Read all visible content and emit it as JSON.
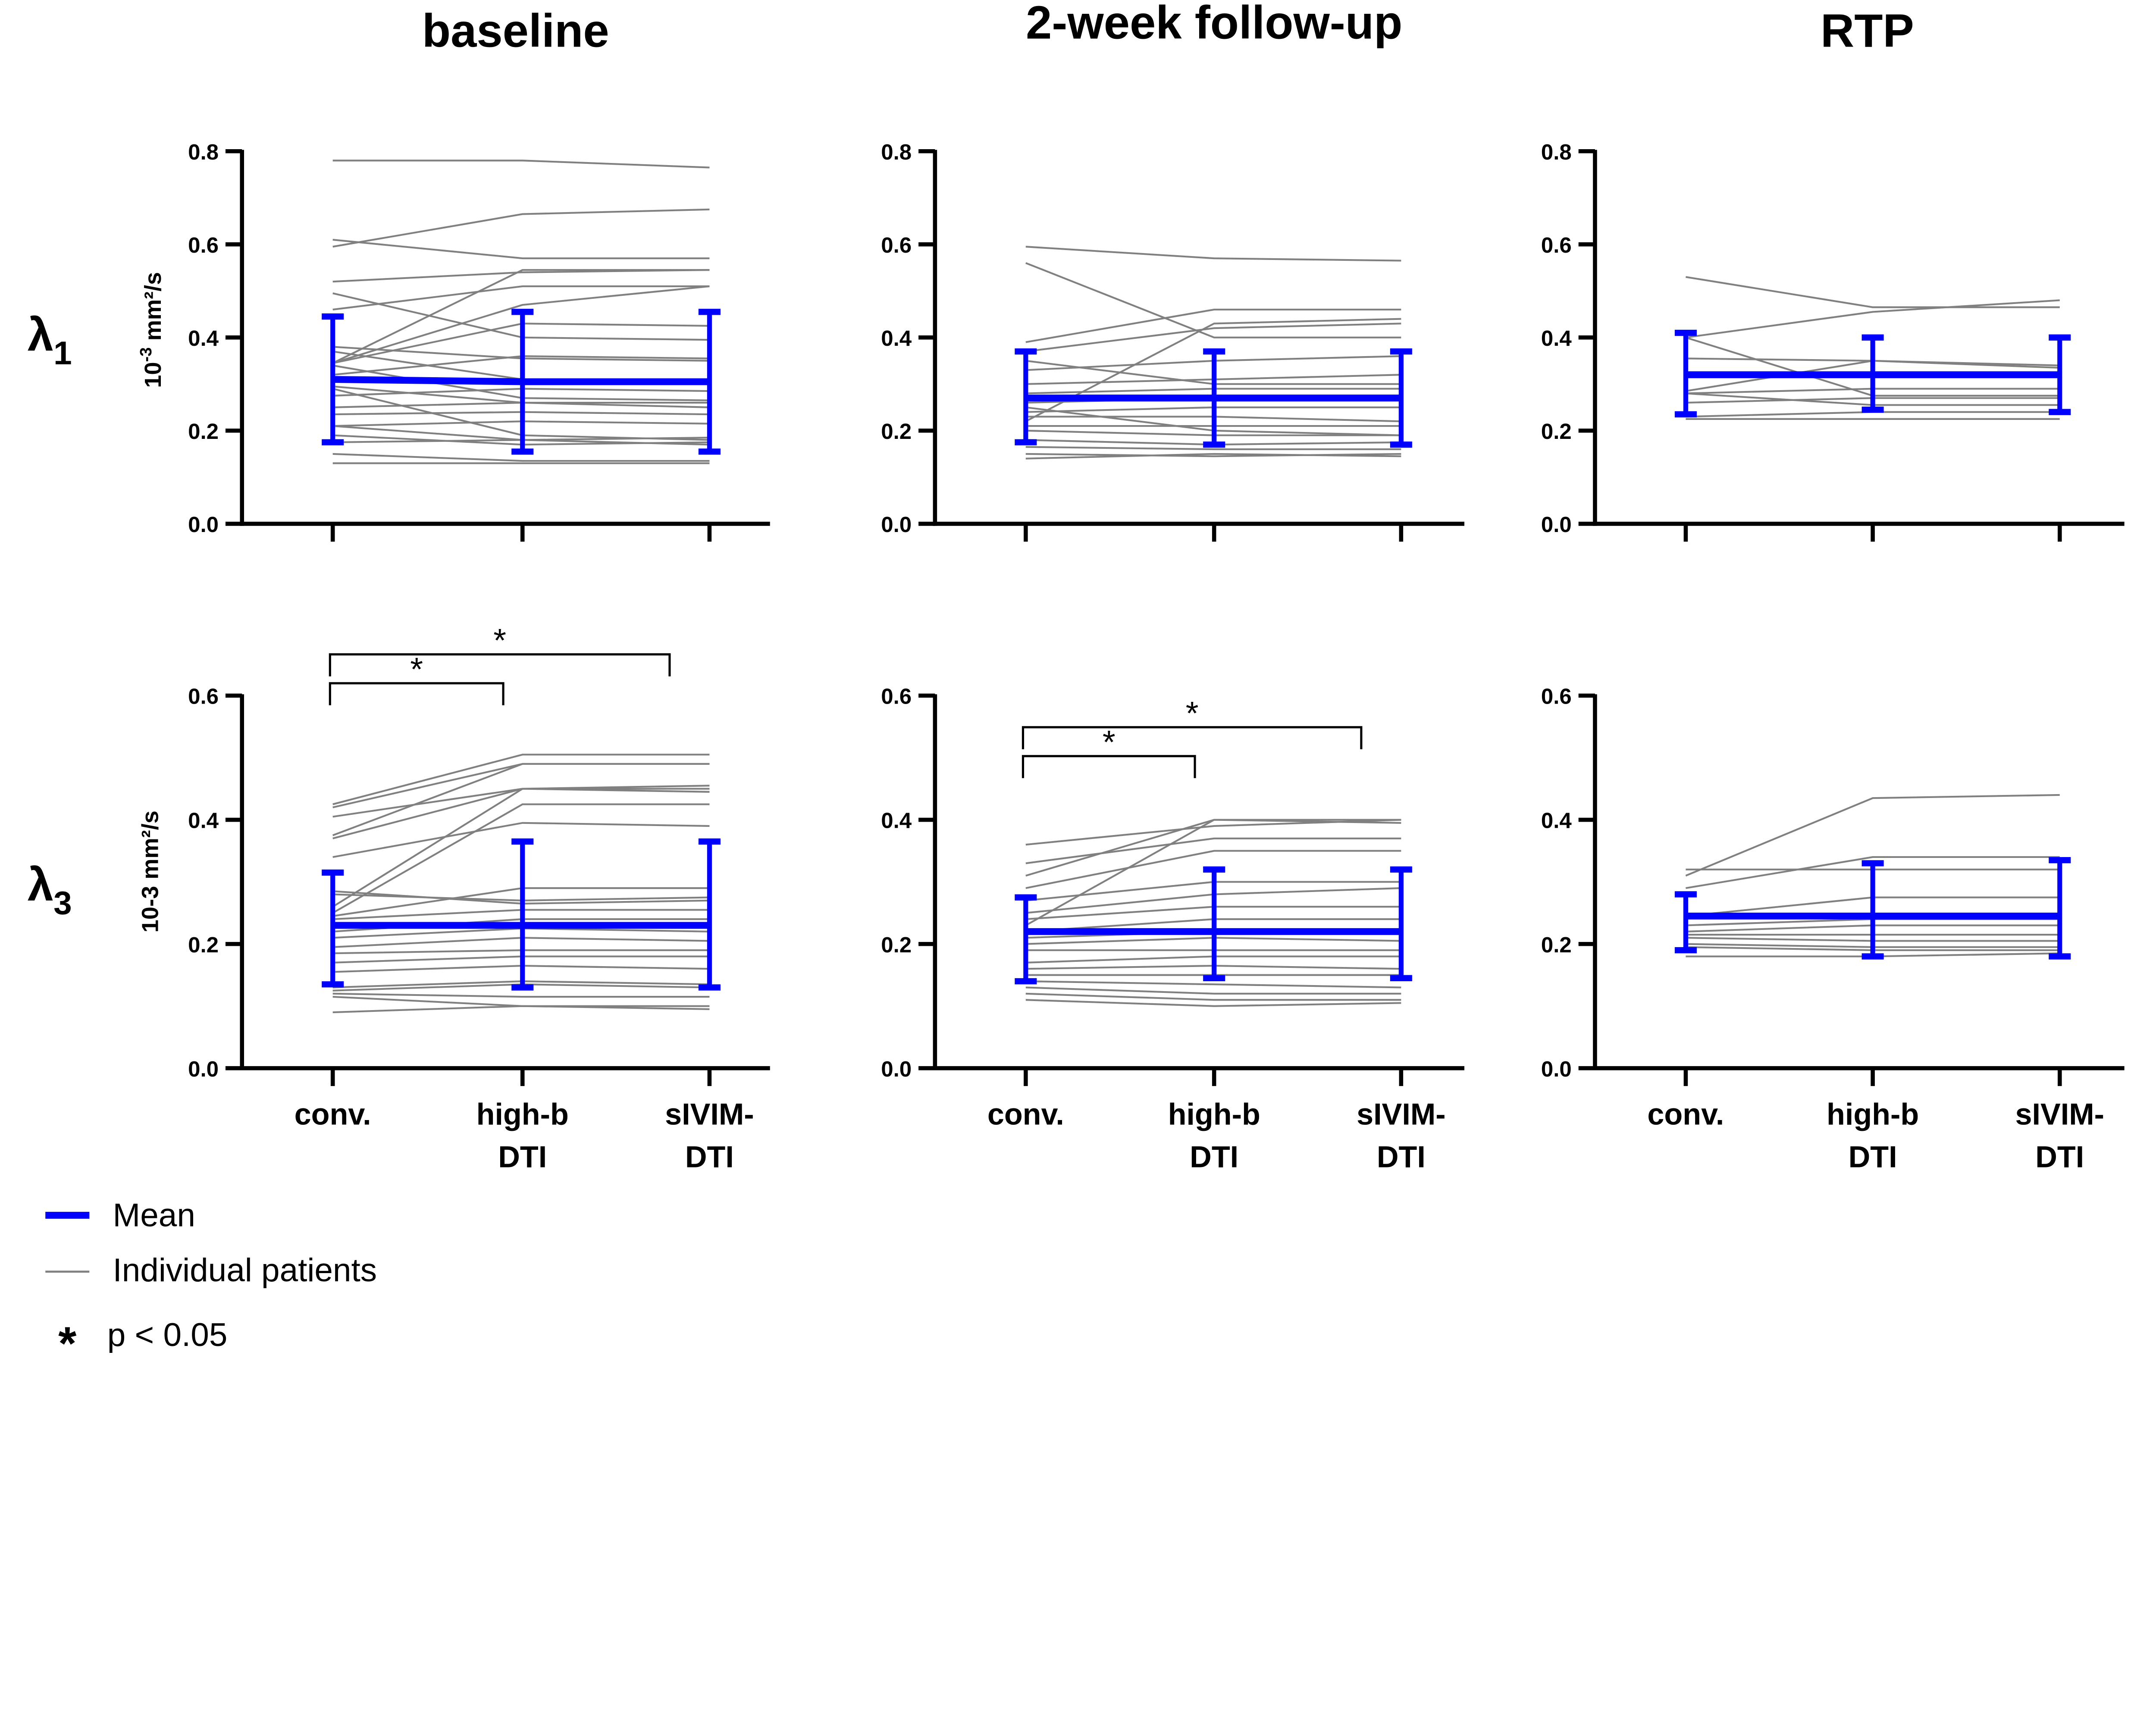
{
  "chart_data": {
    "type": "line",
    "columns": [
      "baseline",
      "2-week follow-up",
      "RTP"
    ],
    "rows": [
      {
        "label": "λ",
        "subscript": "1",
        "ylabel_base": "10",
        "ylabel_exp": "-3",
        "ylabel_unit": " mm²/s",
        "ylim": [
          0,
          0.8
        ],
        "yticks": [
          "0.0",
          "0.2",
          "0.4",
          "0.6",
          "0.8"
        ]
      },
      {
        "label": "λ",
        "subscript": "3",
        "ylabel_text": "10-3 mm²/s",
        "ylim": [
          0,
          0.6
        ],
        "yticks": [
          "0.0",
          "0.2",
          "0.4",
          "0.6"
        ]
      }
    ],
    "categories": [
      "conv.",
      "high-b DTI",
      "sIVIM-DTI"
    ],
    "category_lines": [
      [
        "conv."
      ],
      [
        "high-b",
        "DTI"
      ],
      [
        "sIVIM-",
        "DTI"
      ]
    ],
    "panels": [
      {
        "row": 0,
        "col": 0,
        "mean": [
          0.31,
          0.305,
          0.305
        ],
        "err_low": [
          0.175,
          0.155,
          0.155
        ],
        "err_high": [
          0.445,
          0.455,
          0.455
        ],
        "patients": [
          [
            0.78,
            0.78,
            0.765
          ],
          [
            0.595,
            0.665,
            0.675
          ],
          [
            0.61,
            0.57,
            0.57
          ],
          [
            0.52,
            0.54,
            0.545
          ],
          [
            0.495,
            0.4,
            0.395
          ],
          [
            0.46,
            0.51,
            0.51
          ],
          [
            0.345,
            0.545,
            0.545
          ],
          [
            0.345,
            0.47,
            0.51
          ],
          [
            0.345,
            0.43,
            0.425
          ],
          [
            0.38,
            0.355,
            0.35
          ],
          [
            0.37,
            0.31,
            0.31
          ],
          [
            0.32,
            0.36,
            0.355
          ],
          [
            0.295,
            0.26,
            0.26
          ],
          [
            0.275,
            0.29,
            0.285
          ],
          [
            0.25,
            0.26,
            0.25
          ],
          [
            0.235,
            0.24,
            0.235
          ],
          [
            0.21,
            0.22,
            0.215
          ],
          [
            0.21,
            0.18,
            0.185
          ],
          [
            0.19,
            0.17,
            0.175
          ],
          [
            0.175,
            0.18,
            0.17
          ],
          [
            0.15,
            0.135,
            0.135
          ],
          [
            0.13,
            0.13,
            0.13
          ],
          [
            0.29,
            0.19,
            0.18
          ],
          [
            0.34,
            0.27,
            0.265
          ]
        ],
        "significance": []
      },
      {
        "row": 0,
        "col": 1,
        "mean": [
          0.27,
          0.27,
          0.27
        ],
        "err_low": [
          0.175,
          0.17,
          0.17
        ],
        "err_high": [
          0.37,
          0.37,
          0.37
        ],
        "patients": [
          [
            0.595,
            0.57,
            0.565
          ],
          [
            0.56,
            0.4,
            0.4
          ],
          [
            0.39,
            0.46,
            0.46
          ],
          [
            0.22,
            0.43,
            0.44
          ],
          [
            0.37,
            0.42,
            0.43
          ],
          [
            0.33,
            0.35,
            0.36
          ],
          [
            0.3,
            0.31,
            0.32
          ],
          [
            0.28,
            0.29,
            0.29
          ],
          [
            0.26,
            0.27,
            0.27
          ],
          [
            0.24,
            0.25,
            0.25
          ],
          [
            0.23,
            0.23,
            0.22
          ],
          [
            0.21,
            0.21,
            0.21
          ],
          [
            0.2,
            0.19,
            0.19
          ],
          [
            0.18,
            0.17,
            0.175
          ],
          [
            0.165,
            0.16,
            0.16
          ],
          [
            0.15,
            0.145,
            0.15
          ],
          [
            0.14,
            0.15,
            0.145
          ],
          [
            0.25,
            0.2,
            0.19
          ],
          [
            0.35,
            0.3,
            0.3
          ]
        ],
        "significance": []
      },
      {
        "row": 0,
        "col": 2,
        "mean": [
          0.32,
          0.32,
          0.32
        ],
        "err_low": [
          0.235,
          0.245,
          0.24
        ],
        "err_high": [
          0.41,
          0.4,
          0.4
        ],
        "patients": [
          [
            0.53,
            0.465,
            0.465
          ],
          [
            0.4,
            0.455,
            0.48
          ],
          [
            0.4,
            0.275,
            0.275
          ],
          [
            0.355,
            0.35,
            0.34
          ],
          [
            0.285,
            0.35,
            0.335
          ],
          [
            0.28,
            0.29,
            0.29
          ],
          [
            0.28,
            0.255,
            0.255
          ],
          [
            0.26,
            0.27,
            0.27
          ],
          [
            0.23,
            0.24,
            0.24
          ],
          [
            0.225,
            0.225,
            0.225
          ]
        ],
        "significance": []
      },
      {
        "row": 1,
        "col": 0,
        "mean": [
          0.23,
          0.23,
          0.23
        ],
        "err_low": [
          0.135,
          0.13,
          0.13
        ],
        "err_high": [
          0.315,
          0.365,
          0.365
        ],
        "patients": [
          [
            0.425,
            0.505,
            0.505
          ],
          [
            0.42,
            0.49,
            0.49
          ],
          [
            0.405,
            0.45,
            0.455
          ],
          [
            0.375,
            0.49,
            0.49
          ],
          [
            0.37,
            0.45,
            0.445
          ],
          [
            0.34,
            0.395,
            0.39
          ],
          [
            0.26,
            0.45,
            0.45
          ],
          [
            0.25,
            0.425,
            0.425
          ],
          [
            0.285,
            0.265,
            0.27
          ],
          [
            0.28,
            0.27,
            0.275
          ],
          [
            0.245,
            0.29,
            0.29
          ],
          [
            0.24,
            0.255,
            0.255
          ],
          [
            0.22,
            0.24,
            0.24
          ],
          [
            0.21,
            0.225,
            0.22
          ],
          [
            0.195,
            0.21,
            0.205
          ],
          [
            0.185,
            0.19,
            0.19
          ],
          [
            0.17,
            0.18,
            0.18
          ],
          [
            0.155,
            0.165,
            0.16
          ],
          [
            0.13,
            0.14,
            0.135
          ],
          [
            0.12,
            0.115,
            0.115
          ],
          [
            0.115,
            0.1,
            0.1
          ],
          [
            0.09,
            0.1,
            0.095
          ],
          [
            0.125,
            0.135,
            0.13
          ]
        ],
        "significance": [
          {
            "from": "conv.",
            "to": "high-b DTI",
            "label": "*"
          },
          {
            "from": "conv.",
            "to": "sIVIM-DTI",
            "label": "*"
          }
        ]
      },
      {
        "row": 1,
        "col": 1,
        "mean": [
          0.22,
          0.22,
          0.22
        ],
        "err_low": [
          0.14,
          0.145,
          0.145
        ],
        "err_high": [
          0.275,
          0.32,
          0.32
        ],
        "patients": [
          [
            0.36,
            0.39,
            0.4
          ],
          [
            0.33,
            0.37,
            0.37
          ],
          [
            0.31,
            0.4,
            0.4
          ],
          [
            0.29,
            0.35,
            0.35
          ],
          [
            0.27,
            0.3,
            0.3
          ],
          [
            0.25,
            0.28,
            0.29
          ],
          [
            0.24,
            0.26,
            0.26
          ],
          [
            0.22,
            0.24,
            0.24
          ],
          [
            0.21,
            0.22,
            0.22
          ],
          [
            0.2,
            0.21,
            0.205
          ],
          [
            0.19,
            0.19,
            0.19
          ],
          [
            0.17,
            0.18,
            0.18
          ],
          [
            0.16,
            0.165,
            0.16
          ],
          [
            0.15,
            0.15,
            0.15
          ],
          [
            0.14,
            0.135,
            0.13
          ],
          [
            0.13,
            0.12,
            0.12
          ],
          [
            0.12,
            0.11,
            0.11
          ],
          [
            0.11,
            0.1,
            0.105
          ],
          [
            0.23,
            0.4,
            0.395
          ]
        ],
        "significance": [
          {
            "from": "conv.",
            "to": "high-b DTI",
            "label": "*"
          },
          {
            "from": "conv.",
            "to": "sIVIM-DTI",
            "label": "*"
          }
        ]
      },
      {
        "row": 1,
        "col": 2,
        "mean": [
          0.245,
          0.245,
          0.245
        ],
        "err_low": [
          0.19,
          0.18,
          0.18
        ],
        "err_high": [
          0.28,
          0.33,
          0.335
        ],
        "patients": [
          [
            0.31,
            0.435,
            0.44
          ],
          [
            0.32,
            0.32,
            0.32
          ],
          [
            0.29,
            0.34,
            0.34
          ],
          [
            0.245,
            0.275,
            0.275
          ],
          [
            0.23,
            0.24,
            0.24
          ],
          [
            0.22,
            0.23,
            0.23
          ],
          [
            0.215,
            0.215,
            0.215
          ],
          [
            0.21,
            0.205,
            0.205
          ],
          [
            0.2,
            0.195,
            0.195
          ],
          [
            0.195,
            0.19,
            0.19
          ],
          [
            0.18,
            0.18,
            0.185
          ]
        ],
        "significance": []
      }
    ],
    "legend": [
      {
        "label": "Mean",
        "color": "#0000ff"
      },
      {
        "label": "Individual patients",
        "color": "#808080"
      },
      {
        "symbol": "*",
        "label": "p < 0.05"
      }
    ],
    "legend_position": "bottom-left",
    "grid": false
  }
}
